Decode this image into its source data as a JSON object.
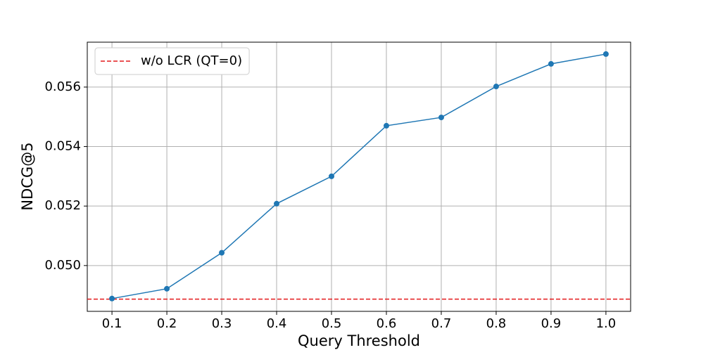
{
  "chart_data": {
    "type": "line",
    "x_label": "Query Threshold",
    "y_label": "NDCG@5",
    "x": [
      0.1,
      0.2,
      0.3,
      0.4,
      0.5,
      0.6,
      0.7,
      0.8,
      0.9,
      1.0
    ],
    "series": [
      {
        "color": "#1f77b4",
        "marker": "circle",
        "values": [
          0.04889,
          0.04922,
          0.05043,
          0.05208,
          0.053,
          0.0547,
          0.05498,
          0.05602,
          0.05678,
          0.05711
        ]
      }
    ],
    "reference_lines": [
      {
        "name": "w/o LCR (QT=0)",
        "value": 0.04887,
        "color": "#e41a1c",
        "style": "dashed"
      }
    ],
    "xlim": [
      0.055,
      1.045
    ],
    "ylim": [
      0.04846,
      0.05751
    ],
    "xticks": [
      0.1,
      0.2,
      0.3,
      0.4,
      0.5,
      0.6,
      0.7,
      0.8,
      0.9,
      {
        "value": 1.0,
        "label": "1.0"
      }
    ],
    "yticks": [
      {
        "value": 0.05,
        "label": "0.050"
      },
      0.052,
      0.054,
      0.056
    ],
    "grid": true,
    "legend": "upper-left"
  }
}
